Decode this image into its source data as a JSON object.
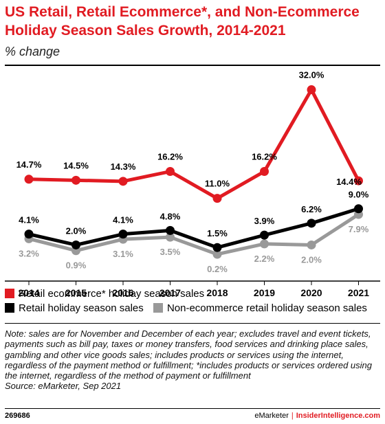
{
  "header": {
    "title": "US Retail, Retail Ecommerce*, and Non-Ecommerce Holiday Season Sales Growth, 2014-2021",
    "subtitle": "% change"
  },
  "colors": {
    "ecommerce": "#e11b22",
    "retail": "#000000",
    "non_ecommerce": "#999999"
  },
  "chart_data": {
    "type": "line",
    "title": "US Retail, Retail Ecommerce*, and Non-Ecommerce Holiday Season Sales Growth, 2014-2021",
    "subtitle": "% change",
    "x": [
      "2014",
      "2015",
      "2016",
      "2017",
      "2018",
      "2019",
      "2020",
      "2021"
    ],
    "grid": false,
    "legend_position": "bottom",
    "series": [
      {
        "name": "Retail ecommerce* holiday season sales",
        "color": "#e11b22",
        "values": [
          14.7,
          14.5,
          14.3,
          16.2,
          11.0,
          16.2,
          32.0,
          14.4
        ],
        "labels": [
          "14.7%",
          "14.5%",
          "14.3%",
          "16.2%",
          "11.0%",
          "16.2%",
          "32.0%",
          "14.4%"
        ]
      },
      {
        "name": "Retail holiday season sales",
        "color": "#000000",
        "values": [
          4.1,
          2.0,
          4.1,
          4.8,
          1.5,
          3.9,
          6.2,
          9.0
        ],
        "labels": [
          "4.1%",
          "2.0%",
          "4.1%",
          "4.8%",
          "1.5%",
          "3.9%",
          "6.2%",
          "9.0%"
        ]
      },
      {
        "name": "Non-ecommerce retail holiday season sales",
        "color": "#999999",
        "values": [
          3.2,
          0.9,
          3.1,
          3.5,
          0.2,
          2.2,
          2.0,
          7.9
        ],
        "labels": [
          "3.2%",
          "0.9%",
          "3.1%",
          "3.5%",
          "0.2%",
          "2.2%",
          "2.0%",
          "7.9%"
        ]
      }
    ]
  },
  "legend": {
    "items": [
      "Retail ecommerce* holiday season sales",
      "Retail holiday season sales",
      "Non-ecommerce retail holiday season sales"
    ]
  },
  "note": "Note: sales are for November and December of each year; excludes travel and event tickets, payments such as bill pay, taxes or money transfers, food services and drinking place sales, gambling and other vice goods sales; includes products or services using the internet, regardless of the payment method or fulfillment; *includes products or services ordered using the internet, regardless of the method of payment or fulfillment",
  "source": "Source: eMarketer, Sep 2021",
  "footer": {
    "id": "269686",
    "brand": "eMarketer",
    "separator": "|",
    "site": "InsiderIntelligence.com"
  }
}
